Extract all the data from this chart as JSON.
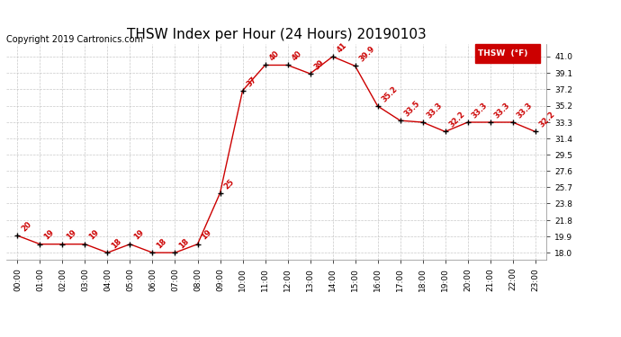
{
  "title": "THSW Index per Hour (24 Hours) 20190103",
  "copyright": "Copyright 2019 Cartronics.com",
  "legend_label": "THSW  (°F)",
  "hours": [
    0,
    1,
    2,
    3,
    4,
    5,
    6,
    7,
    8,
    9,
    10,
    11,
    12,
    13,
    14,
    15,
    16,
    17,
    18,
    19,
    20,
    21,
    22,
    23
  ],
  "values": [
    20,
    19,
    19,
    19,
    18,
    19,
    18,
    18,
    19,
    25,
    37,
    40,
    40,
    39,
    41,
    39.9,
    35.2,
    33.5,
    33.3,
    32.2,
    33.3,
    33.3,
    33.3,
    32.2
  ],
  "labels": [
    "20",
    "19",
    "19",
    "19",
    "18",
    "19",
    "18",
    "18",
    "19",
    "25",
    "37",
    "40",
    "40",
    "39",
    "41",
    "39.9",
    "35.2",
    "33.5",
    "33.3",
    "32.2",
    "33.3",
    "33.3",
    "33.3",
    "32.2"
  ],
  "x_tick_labels": [
    "00:00",
    "01:00",
    "02:00",
    "03:00",
    "04:00",
    "05:00",
    "06:00",
    "07:00",
    "08:00",
    "09:00",
    "10:00",
    "11:00",
    "12:00",
    "13:00",
    "14:00",
    "15:00",
    "16:00",
    "17:00",
    "18:00",
    "19:00",
    "20:00",
    "21:00",
    "22:00",
    "23:00"
  ],
  "y_ticks": [
    18.0,
    19.9,
    21.8,
    23.8,
    25.7,
    27.6,
    29.5,
    31.4,
    33.3,
    35.2,
    37.2,
    39.1,
    41.0
  ],
  "ylim": [
    17.2,
    42.5
  ],
  "line_color": "#cc0000",
  "marker_color": "#000000",
  "label_color": "#cc0000",
  "background_color": "#ffffff",
  "grid_color": "#bbbbbb",
  "title_fontsize": 11,
  "copyright_fontsize": 7,
  "label_fontsize": 6,
  "tick_fontsize": 6.5,
  "legend_bg": "#cc0000",
  "legend_text_color": "#ffffff"
}
